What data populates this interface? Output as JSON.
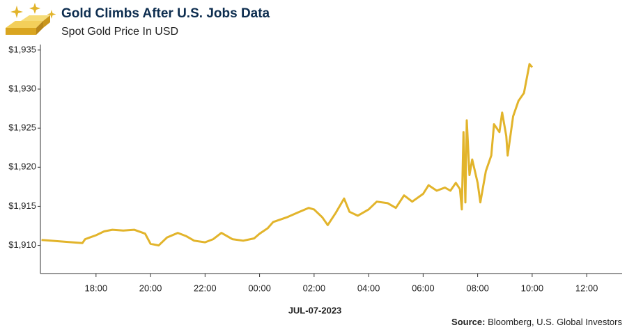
{
  "chart_data": {
    "type": "line",
    "title": "Gold Climbs After U.S. Jobs Data",
    "subtitle": "Spot Gold Price In USD",
    "x_label": "JUL-07-2023",
    "source_label": "Source:",
    "source_text": "Bloomberg, U.S. Global Investors",
    "x": [
      16.0,
      17.5,
      17.6,
      18.0,
      18.3,
      18.6,
      19.0,
      19.4,
      19.8,
      20.0,
      20.3,
      20.6,
      21.0,
      21.3,
      21.6,
      22.0,
      22.3,
      22.6,
      23.0,
      23.4,
      23.8,
      24.0,
      24.3,
      24.5,
      25.0,
      25.4,
      25.8,
      26.0,
      26.3,
      26.5,
      26.8,
      27.1,
      27.3,
      27.6,
      28.0,
      28.3,
      28.7,
      29.0,
      29.3,
      29.6,
      30.0,
      30.2,
      30.5,
      30.8,
      31.0,
      31.2,
      31.35,
      31.42,
      31.48,
      31.55,
      31.6,
      31.7,
      31.8,
      32.0,
      32.1,
      32.3,
      32.5,
      32.6,
      32.8,
      32.9,
      33.05,
      33.1,
      33.3,
      33.5,
      33.7,
      33.9,
      34.0
    ],
    "series": [
      {
        "name": "Spot Gold Price",
        "color": "#e2b42b",
        "values": [
          1910.7,
          1910.3,
          1910.8,
          1911.3,
          1911.8,
          1912.0,
          1911.9,
          1912.0,
          1911.5,
          1910.2,
          1910.0,
          1911.0,
          1911.6,
          1911.2,
          1910.6,
          1910.4,
          1910.8,
          1911.6,
          1910.8,
          1910.6,
          1910.9,
          1911.5,
          1912.2,
          1913.0,
          1913.6,
          1914.2,
          1914.8,
          1914.6,
          1913.6,
          1912.6,
          1914.2,
          1916.0,
          1914.3,
          1913.8,
          1914.6,
          1915.6,
          1915.4,
          1914.8,
          1916.4,
          1915.6,
          1916.6,
          1917.7,
          1917.0,
          1917.4,
          1917.0,
          1918.0,
          1917.2,
          1914.6,
          1924.5,
          1915.5,
          1926.0,
          1919.0,
          1921.0,
          1918.0,
          1915.5,
          1919.5,
          1921.5,
          1925.5,
          1924.5,
          1927.0,
          1924.0,
          1921.5,
          1926.5,
          1928.5,
          1929.5,
          1933.2,
          1932.8
        ]
      }
    ],
    "xlim": [
      15.96,
      37.3
    ],
    "xticks": [
      {
        "value": 18,
        "label": "18:00"
      },
      {
        "value": 20,
        "label": "20:00"
      },
      {
        "value": 22,
        "label": "22:00"
      },
      {
        "value": 24,
        "label": "00:00"
      },
      {
        "value": 26,
        "label": "02:00"
      },
      {
        "value": 28,
        "label": "04:00"
      },
      {
        "value": 30,
        "label": "06:00"
      },
      {
        "value": 32,
        "label": "08:00"
      },
      {
        "value": 34,
        "label": "10:00"
      },
      {
        "value": 36,
        "label": "12:00"
      }
    ],
    "ylim": [
      1906.4,
      1935.7
    ],
    "yticks": [
      {
        "value": 1910,
        "label": "$1,910"
      },
      {
        "value": 1915,
        "label": "$1,915"
      },
      {
        "value": 1920,
        "label": "$1,920"
      },
      {
        "value": 1925,
        "label": "$1,925"
      },
      {
        "value": 1930,
        "label": "$1,930"
      },
      {
        "value": 1935,
        "label": "$1,935"
      }
    ],
    "grid": false
  }
}
